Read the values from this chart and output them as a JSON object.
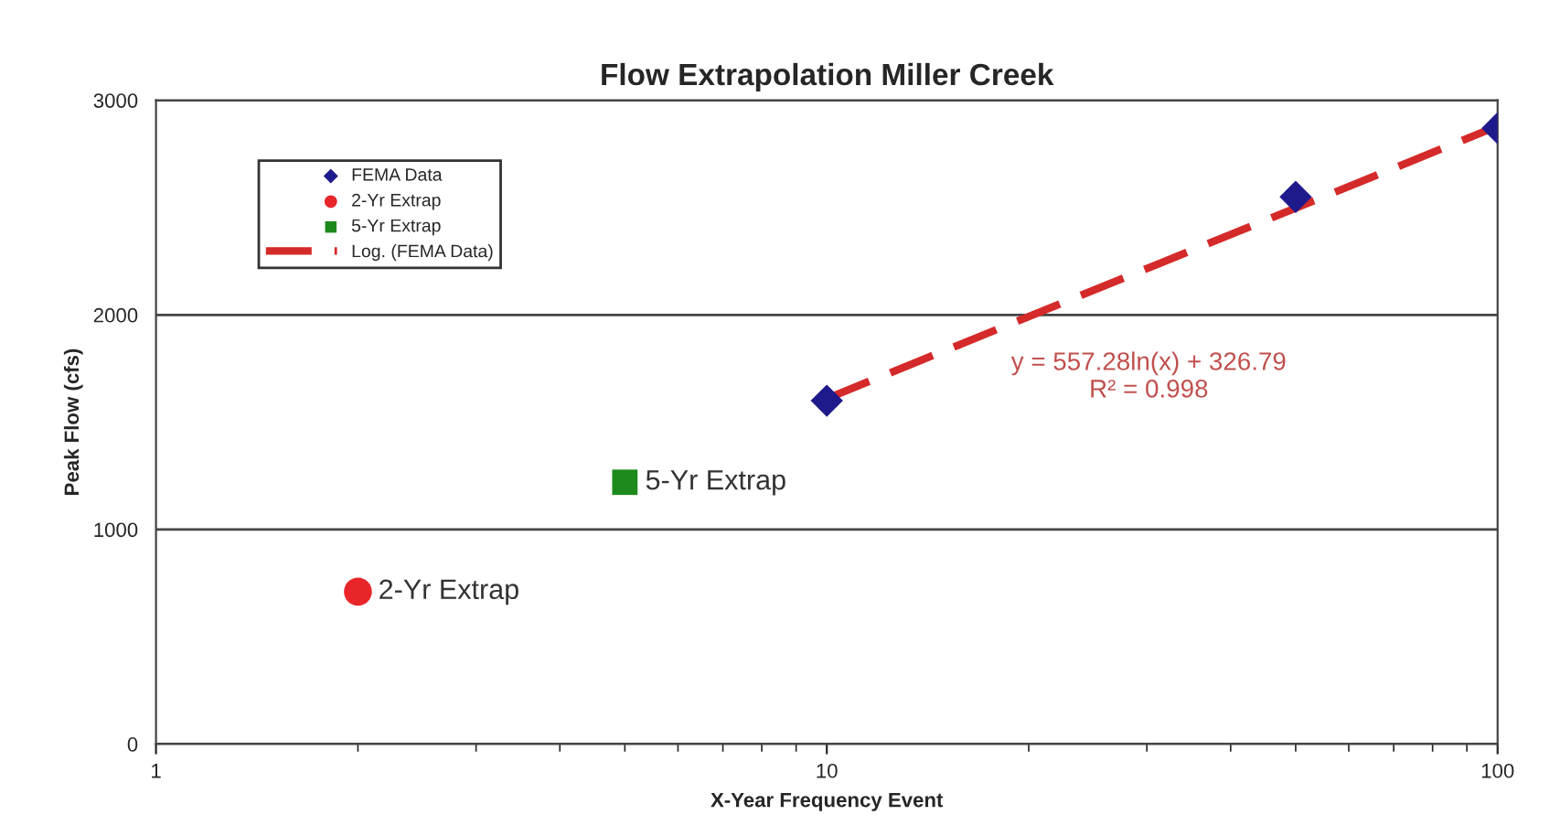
{
  "chart_data": {
    "type": "scatter",
    "title": "Flow Extrapolation Miller Creek",
    "xlabel": "X-Year Frequency Event",
    "ylabel": "Peak Flow (cfs)",
    "log": "x",
    "xlim": [
      1,
      100
    ],
    "xticks": [
      1,
      10,
      100
    ],
    "ylim": [
      0,
      3000
    ],
    "yticks": [
      0,
      1000,
      2000,
      3000
    ],
    "grid": "y",
    "legend": "top left",
    "series": [
      {
        "name": "FEMA Data",
        "marker": "diamond",
        "color": "#1f1a8c",
        "x": [
          10,
          50,
          100
        ],
        "values": [
          1600,
          2550,
          2870
        ]
      },
      {
        "name": "2-Yr Extrap",
        "marker": "circle",
        "color": "#e8262a",
        "x": [
          2
        ],
        "values": [
          710
        ]
      },
      {
        "name": "5-Yr Extrap",
        "marker": "square",
        "color": "#1e8a1e",
        "x": [
          5
        ],
        "values": [
          1220
        ]
      },
      {
        "name": "Log. (FEMA Data)",
        "type": "line",
        "line_style": "dashed",
        "color": "#d42a2a",
        "x": [
          10,
          100
        ],
        "values": [
          1610,
          2880
        ]
      }
    ],
    "annotations": [
      {
        "text": "5-Yr Extrap",
        "x": 5,
        "y": 1220
      },
      {
        "text": "2-Yr Extrap",
        "x": 2,
        "y": 710
      },
      "y = 557.28ln(x) + 326.79\nR² = 0.998"
    ]
  }
}
